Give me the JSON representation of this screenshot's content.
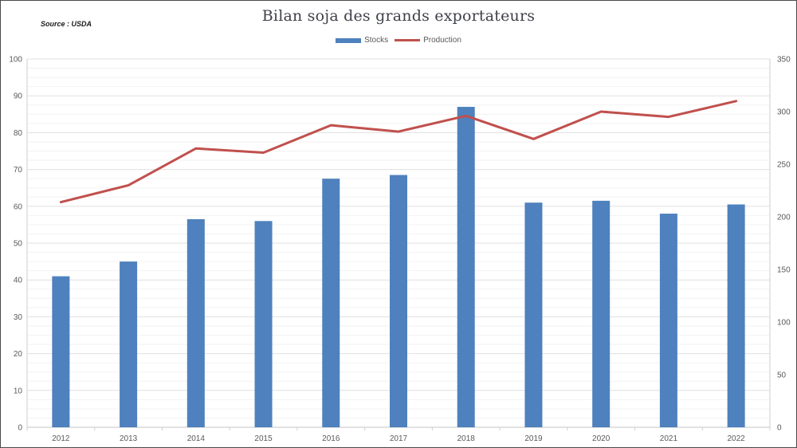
{
  "header": {
    "title": "Bilan soja des grands exportateurs",
    "source": "Source : USDA"
  },
  "legend": {
    "items": [
      {
        "label": "Stocks",
        "color": "#4e81bd",
        "marker": "bar"
      },
      {
        "label": "Production",
        "color": "#c0504d",
        "marker": "line"
      }
    ]
  },
  "colors": {
    "bar": "#4e81bd",
    "line": "#c0504d",
    "axis_text": "#595959",
    "gridline_major": "#e0e0e0",
    "gridline_minor": "#f2f2f2",
    "axis_line": "#cfcfcf",
    "title_text": "#3f4149"
  },
  "chart_data": {
    "type": "combo-bar-line",
    "title": "Bilan soja des grands exportateurs",
    "source": "Source : USDA",
    "categories": [
      "2012",
      "2013",
      "2014",
      "2015",
      "2016",
      "2017",
      "2018",
      "2019",
      "2020",
      "2021",
      "2022"
    ],
    "series": [
      {
        "name": "Stocks",
        "type": "bar",
        "axis": "left",
        "color": "#4e81bd",
        "values": [
          41,
          45,
          56.5,
          56,
          67.5,
          68.5,
          87,
          61,
          61.5,
          58,
          60.5
        ]
      },
      {
        "name": "Production",
        "type": "line",
        "axis": "right",
        "color": "#c0504d",
        "values": [
          214,
          230,
          265,
          261,
          287,
          281,
          296,
          274,
          300,
          295,
          310
        ]
      }
    ],
    "left_axis": {
      "min": 0,
      "max": 100,
      "ticks": [
        0,
        10,
        20,
        30,
        40,
        50,
        60,
        70,
        80,
        90,
        100
      ],
      "minor_step": 2.5
    },
    "right_axis": {
      "min": 0,
      "max": 350,
      "ticks": [
        0,
        50,
        100,
        150,
        200,
        250,
        300,
        350
      ]
    },
    "grid": true,
    "legend_position": "top"
  }
}
